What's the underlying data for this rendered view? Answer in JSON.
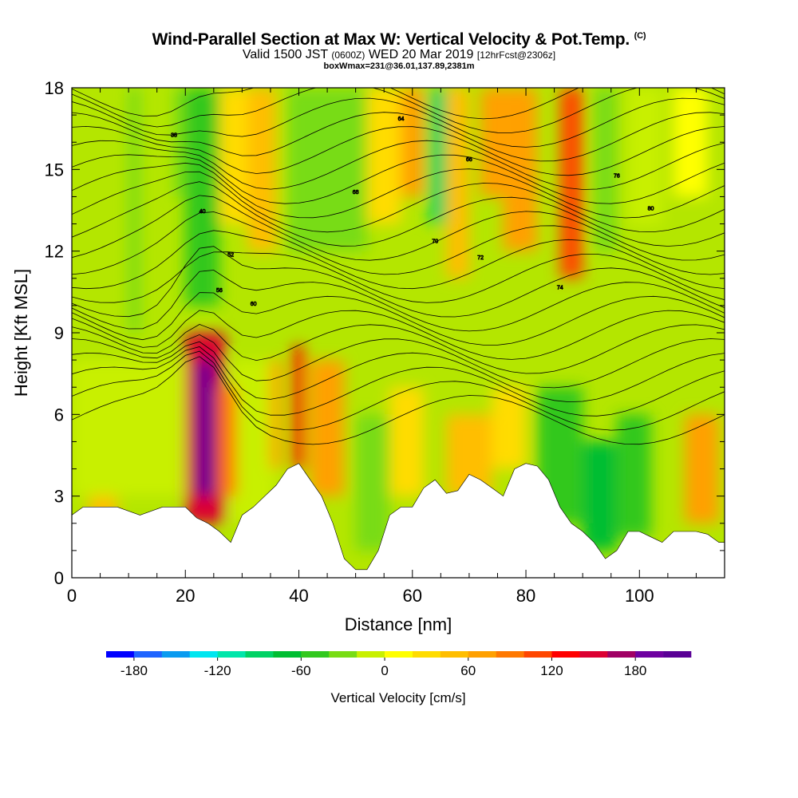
{
  "title": {
    "main": "Wind-Parallel Section at Max W: Vertical Velocity & Pot.Temp.",
    "copyright": "(C)",
    "valid_prefix": "Valid 1500 JST",
    "valid_utc": "(0600Z)",
    "valid_date": "WED 20 Mar 2019",
    "forecast": "[12hrFcst@2306z]",
    "box_info": "boxWmax=231@36.01,137.89,2381m"
  },
  "chart_data": {
    "type": "heatmap",
    "xlabel": "Distance [nm]",
    "ylabel": "Height [Kft MSL]",
    "xlim": [
      0,
      115
    ],
    "ylim": [
      0,
      18
    ],
    "x_ticks": [
      0,
      20,
      40,
      60,
      80,
      100
    ],
    "y_ticks": [
      0,
      3,
      6,
      9,
      12,
      15,
      18
    ],
    "colorbar": {
      "label": "Vertical Velocity [cm/s]",
      "min": -200,
      "max": 220,
      "step": 20,
      "tick_values": [
        -180,
        -120,
        -60,
        0,
        60,
        120,
        180
      ],
      "tick_labels": [
        "-180",
        "-120",
        "-60",
        "0",
        "60",
        "120",
        "180"
      ],
      "colors": [
        "#0000ff",
        "#1e64ff",
        "#0a9bf0",
        "#00e6f0",
        "#00e6aa",
        "#00d264",
        "#00be32",
        "#32c81e",
        "#78dc14",
        "#c8f000",
        "#ffff00",
        "#ffdc00",
        "#ffbe00",
        "#ffa000",
        "#ff7800",
        "#ff4600",
        "#ff0000",
        "#dc0032",
        "#a00064",
        "#6e00a0",
        "#5a0096"
      ]
    },
    "terrain_top_kft": [
      [
        0,
        2.3
      ],
      [
        2,
        2.6
      ],
      [
        8,
        2.6
      ],
      [
        12,
        2.3
      ],
      [
        16,
        2.6
      ],
      [
        20,
        2.6
      ],
      [
        22,
        2.2
      ],
      [
        24,
        2.0
      ],
      [
        26,
        1.7
      ],
      [
        28,
        1.3
      ],
      [
        30,
        2.3
      ],
      [
        32,
        2.6
      ],
      [
        34,
        3.0
      ],
      [
        36,
        3.4
      ],
      [
        38,
        4.0
      ],
      [
        40,
        4.2
      ],
      [
        42,
        3.6
      ],
      [
        44,
        3.0
      ],
      [
        46,
        2.0
      ],
      [
        48,
        0.7
      ],
      [
        50,
        0.3
      ],
      [
        52,
        0.3
      ],
      [
        54,
        1.0
      ],
      [
        56,
        2.3
      ],
      [
        58,
        2.6
      ],
      [
        60,
        2.6
      ],
      [
        62,
        3.3
      ],
      [
        64,
        3.6
      ],
      [
        66,
        3.1
      ],
      [
        68,
        3.2
      ],
      [
        70,
        3.8
      ],
      [
        72,
        3.6
      ],
      [
        74,
        3.3
      ],
      [
        76,
        3.0
      ],
      [
        78,
        4.0
      ],
      [
        80,
        4.2
      ],
      [
        82,
        4.1
      ],
      [
        84,
        3.6
      ],
      [
        86,
        2.6
      ],
      [
        88,
        2.0
      ],
      [
        90,
        1.7
      ],
      [
        92,
        1.3
      ],
      [
        94,
        0.7
      ],
      [
        96,
        1.0
      ],
      [
        98,
        1.7
      ],
      [
        100,
        1.7
      ],
      [
        102,
        1.5
      ],
      [
        104,
        1.3
      ],
      [
        106,
        1.7
      ],
      [
        108,
        1.7
      ],
      [
        110,
        1.7
      ],
      [
        112,
        1.6
      ],
      [
        114,
        1.3
      ],
      [
        115,
        1.3
      ]
    ],
    "max_updraft": {
      "value_cm_s": 231,
      "x_nm": 23,
      "z_kft": 5.5
    },
    "pot_temp_label_values": [
      "38",
      "40",
      "52",
      "56",
      "60",
      "64",
      "66",
      "68",
      "70",
      "72",
      "74",
      "76",
      "80"
    ]
  }
}
